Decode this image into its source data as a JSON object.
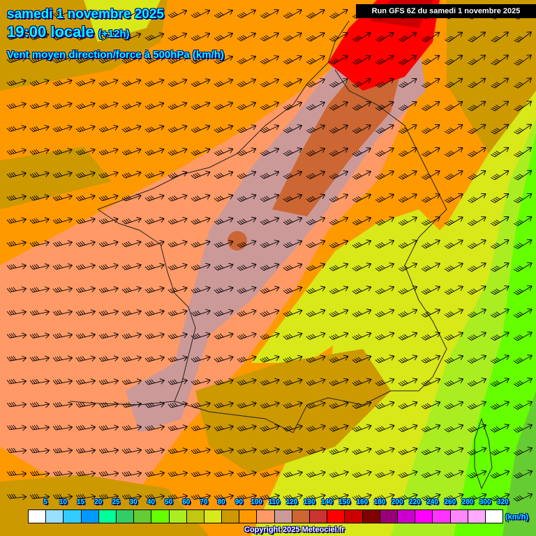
{
  "header": {
    "date": "samedi 1 novembre 2025",
    "time": "19:00 locale",
    "offset": "(+12h)",
    "subtitle": "Vent moyen direction/force à 500hPa (km/h)",
    "run": "Run GFS 6Z du samedi 1 novembre 2025"
  },
  "legend": {
    "labels": [
      "5",
      "10",
      "15",
      "20",
      "25",
      "30",
      "40",
      "50",
      "60",
      "70",
      "80",
      "90",
      "100",
      "110",
      "120",
      "130",
      "140",
      "150",
      "160",
      "180",
      "200",
      "220",
      "240",
      "260",
      "280",
      "300",
      "320"
    ],
    "colors": [
      "#ffffff",
      "#99e0ff",
      "#33ccff",
      "#0099ff",
      "#00ff99",
      "#33cc66",
      "#66cc33",
      "#66ff00",
      "#aaee22",
      "#c0c810",
      "#d8e818",
      "#cc9900",
      "#ff9900",
      "#ff9966",
      "#cc9999",
      "#cc6633",
      "#cc3333",
      "#ff0000",
      "#cc0000",
      "#800000",
      "#990077",
      "#cc00cc",
      "#ff00ff",
      "#ff33ff",
      "#ff88ff",
      "#ffaaff",
      "#ffffff"
    ],
    "unit": "(km/h)"
  },
  "copyright": "Copyright 2025 Meteociel.fr",
  "map": {
    "wind_direction": "south-west to north-east",
    "arrow-icon": "wind-barb"
  }
}
